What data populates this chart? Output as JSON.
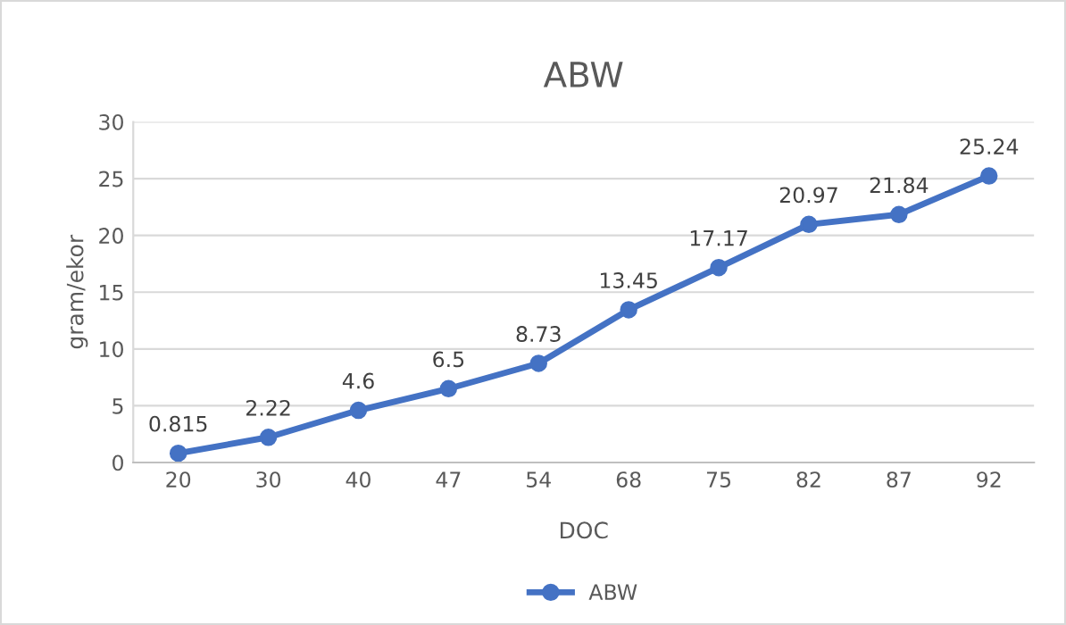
{
  "chart_data": {
    "type": "line",
    "title": "ABW",
    "xlabel": "DOC",
    "ylabel": "gram/ekor",
    "categories": [
      "20",
      "30",
      "40",
      "47",
      "54",
      "68",
      "75",
      "82",
      "87",
      "92"
    ],
    "series": [
      {
        "name": "ABW",
        "color": "#4472c4",
        "values": [
          0.815,
          2.22,
          4.6,
          6.5,
          8.73,
          13.45,
          17.17,
          20.97,
          21.84,
          25.24
        ]
      }
    ],
    "ylim": [
      0,
      30
    ],
    "yticks": [
      0,
      5,
      10,
      15,
      20,
      25,
      30
    ],
    "grid": "y",
    "legend": "bottom",
    "marker": "circle",
    "line_style": "solid",
    "data_labels": true
  }
}
